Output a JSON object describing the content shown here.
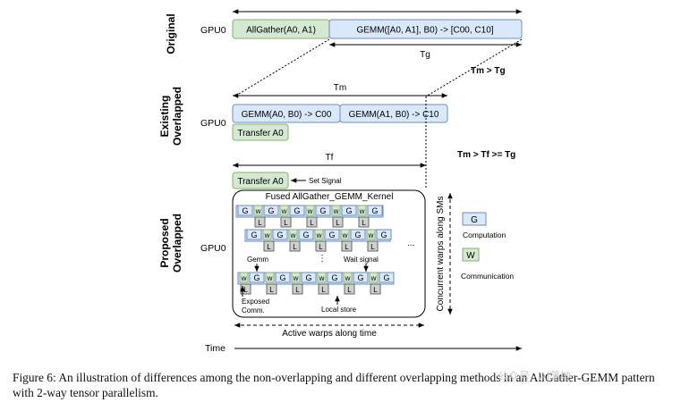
{
  "rows": {
    "original": "Original",
    "existing_1": "Existing",
    "existing_2": "Overlapped",
    "proposed_1": "Proposed",
    "proposed_2": "Overlapped"
  },
  "gpu_label": "GPU0",
  "original": {
    "allgather": "AllGather(A0, A1)",
    "gemm": "GEMM([A0, A1], B0) -> [C00, C10]",
    "tg": "Tg"
  },
  "relations": {
    "tm_gt_tg": "Tm > Tg",
    "tm_gt_tf_ge_tg": "Tm > Tf >= Tg"
  },
  "existing": {
    "tm": "Tm",
    "gemm1": "GEMM(A0, B0) -> C00",
    "gemm2": "GEMM(A1, B0) -> C10",
    "transfer": "Transfer A0"
  },
  "proposed": {
    "tf": "Tf",
    "transfer": "Transfer A0",
    "set_signal": "Set Signal",
    "kernel": "Fused AllGather_GEMM_Kernel",
    "g": "G",
    "w": "W",
    "w_small": "w",
    "l": "L",
    "ellipsis": "...",
    "vdots": "⋮",
    "gemm_note": "Gemm",
    "wait_signal": "Wait signal",
    "exposed_1": "Exposed",
    "exposed_2": "Comm.",
    "local_store": "Local store",
    "active_warps": "Active warps along time",
    "concurrent_warps": "Concurrent warps along SMs"
  },
  "legend": {
    "computation": "Computation",
    "communication": "Communication"
  },
  "time_label": "Time",
  "caption": "Figure 6: An illustration of differences among the non-overlapping and different overlapping methods in an AllGather-GEMM pattern with 2-way tensor parallelism.",
  "watermark": "公众号 · AI落地",
  "colors": {
    "gemm_fill": "#dae8fc",
    "gemm_stroke": "#6c8ebf",
    "comm_fill": "#d5e8d4",
    "comm_stroke": "#82b366",
    "local_fill": "#d0d0d0",
    "local_stroke": "#666666"
  }
}
